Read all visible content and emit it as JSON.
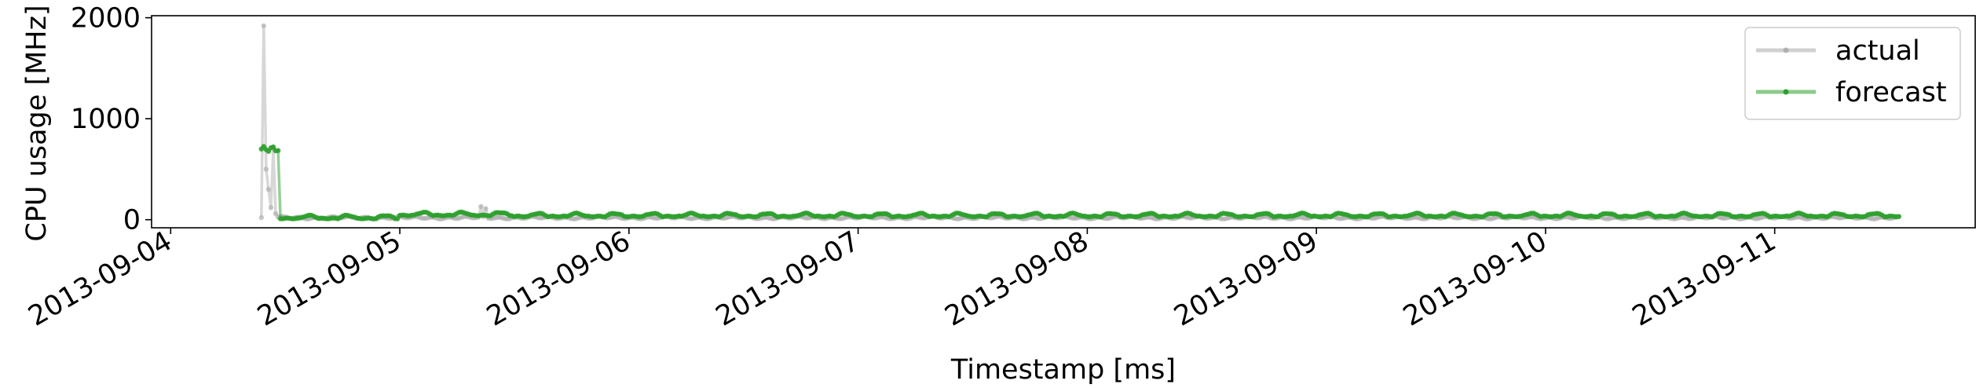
{
  "chart_data": {
    "type": "line",
    "title": "",
    "xlabel": "Timestamp [ms]",
    "ylabel": "CPU usage [MHz]",
    "xlim": [
      "2013-09-03T22:00",
      "2013-09-11T21:00"
    ],
    "ylim": [
      -80,
      2020
    ],
    "x_ticks": [
      "2013-09-04",
      "2013-09-05",
      "2013-09-06",
      "2013-09-07",
      "2013-09-08",
      "2013-09-09",
      "2013-09-10",
      "2013-09-11"
    ],
    "y_ticks": [
      0,
      1000,
      2000
    ],
    "grid": false,
    "legend": {
      "position": "top-right",
      "entries": [
        "actual",
        "forecast"
      ]
    },
    "series": [
      {
        "name": "actual",
        "color": "#b0b0b0",
        "opacity": 0.5,
        "x_start": "2013-09-04T09:30",
        "x_end": "2013-09-11T13:00",
        "samples_per_hour": 4,
        "baseline": 20,
        "spikes": [
          {
            "x": "2013-09-04T09:45",
            "y": 1920
          },
          {
            "x": "2013-09-04T10:00",
            "y": 500
          },
          {
            "x": "2013-09-04T10:15",
            "y": 300
          },
          {
            "x": "2013-09-04T10:30",
            "y": 120
          },
          {
            "x": "2013-09-04T10:45",
            "y": 700
          },
          {
            "x": "2013-09-04T11:00",
            "y": 60
          },
          {
            "x": "2013-09-05T08:30",
            "y": 130
          },
          {
            "x": "2013-09-05T09:00",
            "y": 110
          }
        ]
      },
      {
        "name": "forecast",
        "color": "#2ca02c",
        "opacity": 0.5,
        "x_start": "2013-09-04T09:30",
        "x_end": "2013-09-11T13:00",
        "samples_per_hour": 4,
        "segments": [
          {
            "from": "2013-09-04T09:30",
            "to": "2013-09-04T11:30",
            "level": 700
          },
          {
            "from": "2013-09-04T11:30",
            "to": "2013-09-05T00:00",
            "level": 20
          },
          {
            "from": "2013-09-05T00:00",
            "to": "2013-09-05T12:00",
            "level": 50
          },
          {
            "from": "2013-09-05T12:00",
            "to": "2013-09-11T13:00",
            "level": 40
          }
        ],
        "oscillation": {
          "period_hours": 4,
          "amplitude": 30
        }
      }
    ]
  }
}
